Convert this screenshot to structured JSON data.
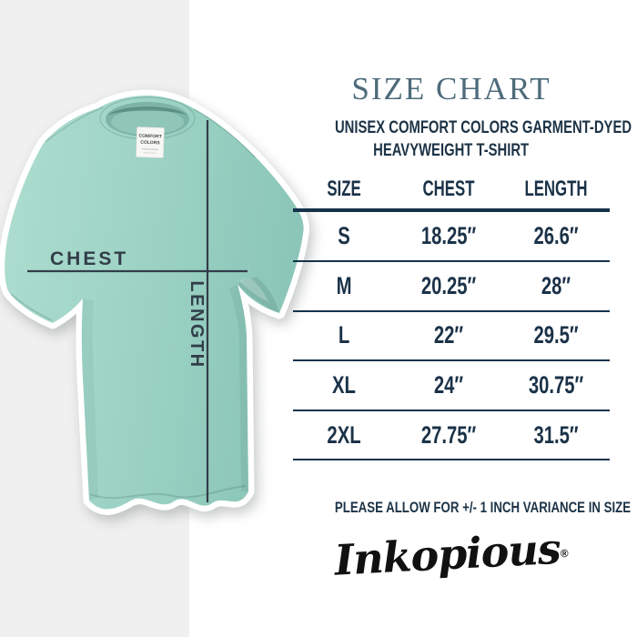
{
  "header": {
    "title": "SIZE CHART",
    "subtitle_line1": "UNISEX COMFORT COLORS GARMENT-DYED",
    "subtitle_line2": "HEAVYWEIGHT T-SHIRT"
  },
  "shirt": {
    "chest_label": "CHEST",
    "length_label": "LENGTH",
    "tag_line1": "COMFORT",
    "tag_line2": "COLORS"
  },
  "chart_data": {
    "type": "table",
    "title": "SIZE CHART",
    "columns": [
      "SIZE",
      "CHEST",
      "LENGTH"
    ],
    "rows": [
      [
        "S",
        "18.25″",
        "26.6″"
      ],
      [
        "M",
        "20.25″",
        "28″"
      ],
      [
        "L",
        "22″",
        "29.5″"
      ],
      [
        "XL",
        "24″",
        "30.75″"
      ],
      [
        "2XL",
        "27.75″",
        "31.5″"
      ]
    ]
  },
  "footer": {
    "note": "PLEASE ALLOW FOR +/- 1 INCH VARIANCE IN SIZE",
    "brand": "Inkopious",
    "brand_reg": "®"
  },
  "colors": {
    "accent_navy": "#16324a",
    "title_slate": "#4d6b7a",
    "shirt_mint": "#9bd2c4",
    "panel_gray": "#f0f0f0",
    "measure_dark": "#323e49",
    "logo_black": "#111111"
  }
}
